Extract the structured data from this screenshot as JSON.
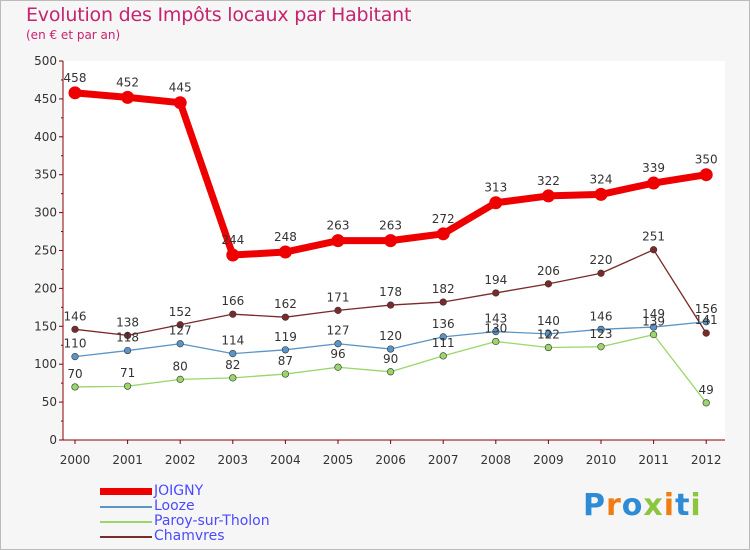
{
  "header": {
    "title": "Evolution des Impôts locaux par Habitant",
    "subtitle": "(en € et par an)"
  },
  "logo": {
    "text": "Proxiti",
    "letters": [
      "P",
      "r",
      "o",
      "x",
      "i",
      "t",
      "i"
    ],
    "colors": [
      "#2e8bd6",
      "#f07d12",
      "#2e8bd6",
      "#8cc63e",
      "#f07d12",
      "#2e8bd6",
      "#8cc63e"
    ]
  },
  "chart_data": {
    "type": "line",
    "title": "Evolution des Impôts locaux par Habitant",
    "subtitle": "(en € et par an)",
    "xlabel": "",
    "ylabel": "",
    "categories": [
      "2000",
      "2001",
      "2002",
      "2003",
      "2004",
      "2005",
      "2006",
      "2007",
      "2008",
      "2009",
      "2010",
      "2011",
      "2012"
    ],
    "ylim": [
      0,
      500
    ],
    "yticks": [
      0,
      50,
      100,
      150,
      200,
      250,
      300,
      350,
      400,
      450,
      500
    ],
    "grid": false,
    "legend_position": "bottom-left",
    "series": [
      {
        "name": "JOIGNY",
        "color": "#ee0000",
        "values": [
          458,
          452,
          445,
          244,
          248,
          263,
          263,
          272,
          313,
          322,
          324,
          339,
          350
        ]
      },
      {
        "name": "Looze",
        "color": "#5a95c8",
        "values": [
          110,
          118,
          127,
          114,
          119,
          127,
          120,
          136,
          143,
          140,
          146,
          149,
          156
        ]
      },
      {
        "name": "Paroy-sur-Tholon",
        "color": "#9ad66a",
        "values": [
          70,
          71,
          80,
          82,
          87,
          96,
          90,
          111,
          130,
          122,
          123,
          139,
          49
        ]
      },
      {
        "name": "Chamvres",
        "color": "#7a2a2a",
        "values": [
          146,
          138,
          152,
          166,
          162,
          171,
          178,
          182,
          194,
          206,
          220,
          251,
          141
        ]
      }
    ],
    "data_labels": {
      "JOIGNY": [
        "458",
        "452",
        "445",
        "244",
        "248",
        "263",
        "263",
        "272",
        "313",
        "322",
        "324",
        "339",
        "350"
      ],
      "Looze": [
        "110",
        "118",
        "127",
        "114",
        "119",
        "127",
        "120",
        "136",
        "143",
        "140",
        "146",
        "149",
        "156"
      ],
      "Paroy-sur-Tholon": [
        "70",
        "71",
        "80",
        "82",
        "87",
        "96",
        "90",
        "111",
        "130",
        "122",
        "123",
        "139",
        "49"
      ],
      "Chamvres": [
        "146",
        "138",
        "152",
        "166",
        "162",
        "171",
        "178",
        "182",
        "194",
        "206",
        "220",
        "251",
        "141"
      ]
    }
  }
}
